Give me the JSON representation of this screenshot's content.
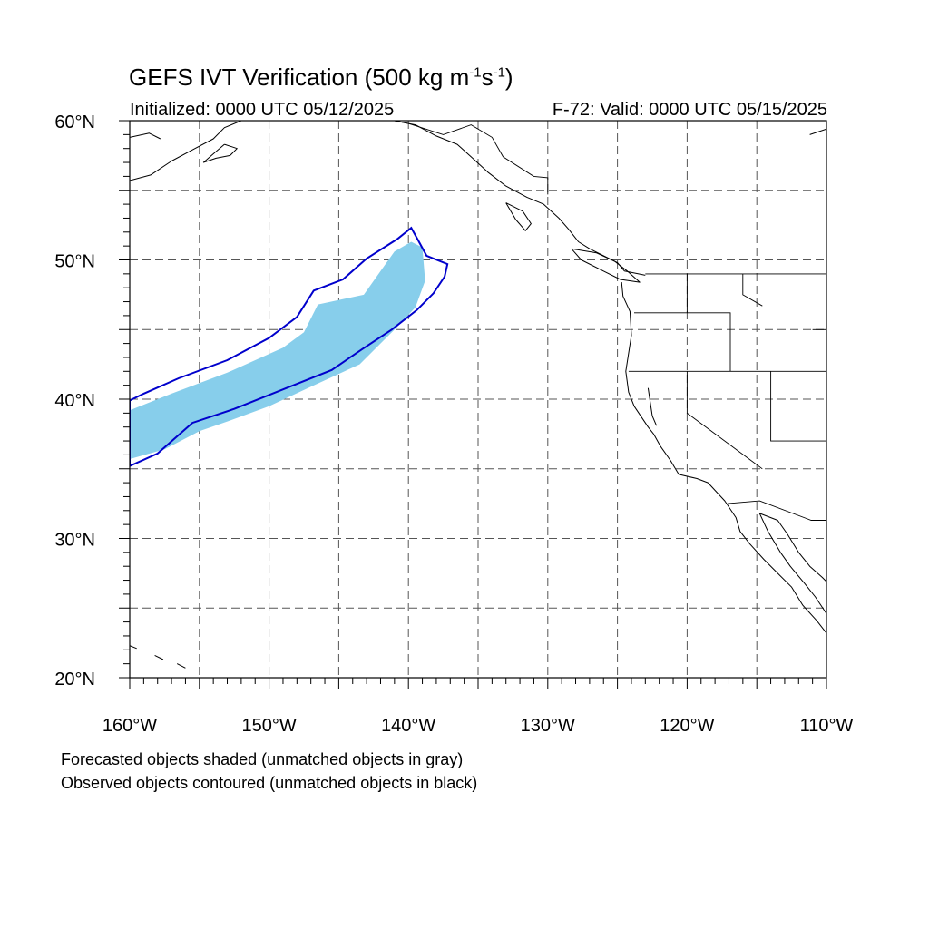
{
  "title": {
    "main": "GEFS IVT Verification (500 kg m",
    "exp1": "-1",
    "mid": "s",
    "exp2": "-1",
    "close": ")"
  },
  "subtitle": {
    "left": "Initialized: 0000 UTC 05/12/2025",
    "right": "F-72: Valid: 0000 UTC 05/15/2025"
  },
  "map": {
    "lon_range": [
      -160,
      -110
    ],
    "lat_range": [
      20,
      60
    ],
    "grid": "dashed every 5 degrees",
    "lat_labels": [
      {
        "lat": 60,
        "text": "60°N"
      },
      {
        "lat": 50,
        "text": "50°N"
      },
      {
        "lat": 40,
        "text": "40°N"
      },
      {
        "lat": 30,
        "text": "30°N"
      },
      {
        "lat": 20,
        "text": "20°N"
      }
    ],
    "lon_labels": [
      {
        "lon": -160,
        "text": "160°W"
      },
      {
        "lon": -150,
        "text": "150°W"
      },
      {
        "lon": -140,
        "text": "140°W"
      },
      {
        "lon": -130,
        "text": "130°W"
      },
      {
        "lon": -120,
        "text": "120°W"
      },
      {
        "lon": -110,
        "text": "110°W"
      }
    ],
    "forecast_object": {
      "color": "#87CEEB",
      "outline": [
        [
          -160.0,
          39.2
        ],
        [
          -157.0,
          40.4
        ],
        [
          -153.0,
          41.9
        ],
        [
          -149.0,
          43.7
        ],
        [
          -147.5,
          44.8
        ],
        [
          -146.5,
          46.8
        ],
        [
          -143.2,
          47.5
        ],
        [
          -142.0,
          49.2
        ],
        [
          -141.0,
          50.6
        ],
        [
          -139.8,
          51.3
        ],
        [
          -139.0,
          50.9
        ],
        [
          -138.8,
          48.5
        ],
        [
          -139.5,
          46.6
        ],
        [
          -140.8,
          45.2
        ],
        [
          -143.5,
          42.5
        ],
        [
          -147.0,
          40.9
        ],
        [
          -150.0,
          39.5
        ],
        [
          -153.0,
          38.4
        ],
        [
          -155.0,
          37.7
        ],
        [
          -157.5,
          36.4
        ],
        [
          -160.0,
          35.7
        ]
      ]
    },
    "observed_object": {
      "color": "#0000cc",
      "outline": [
        [
          -160.0,
          39.9
        ],
        [
          -159.0,
          40.4
        ],
        [
          -156.5,
          41.5
        ],
        [
          -153.0,
          42.8
        ],
        [
          -150.0,
          44.4
        ],
        [
          -148.0,
          45.9
        ],
        [
          -146.8,
          47.8
        ],
        [
          -144.7,
          48.6
        ],
        [
          -143.0,
          50.1
        ],
        [
          -140.8,
          51.5
        ],
        [
          -139.8,
          52.3
        ],
        [
          -139.3,
          51.4
        ],
        [
          -138.7,
          50.3
        ],
        [
          -137.2,
          49.7
        ],
        [
          -137.4,
          48.8
        ],
        [
          -138.2,
          47.6
        ],
        [
          -139.4,
          46.4
        ],
        [
          -141.2,
          45.0
        ],
        [
          -143.3,
          43.6
        ],
        [
          -145.5,
          42.1
        ],
        [
          -148.5,
          40.9
        ],
        [
          -152.5,
          39.3
        ],
        [
          -155.5,
          38.3
        ],
        [
          -158.0,
          36.1
        ],
        [
          -160.0,
          35.2
        ]
      ]
    },
    "coastlines": [
      [
        [
          -160.0,
          55.7
        ],
        [
          -158.5,
          56.1
        ],
        [
          -157.0,
          57.1
        ],
        [
          -155.5,
          57.9
        ],
        [
          -154.0,
          58.7
        ],
        [
          -153.2,
          59.5
        ],
        [
          -152.0,
          60.0
        ]
      ],
      [
        [
          -160.0,
          58.8
        ],
        [
          -158.6,
          59.1
        ],
        [
          -157.8,
          58.7
        ]
      ],
      [
        [
          -153.2,
          58.3
        ],
        [
          -152.3,
          58.0
        ],
        [
          -152.8,
          57.5
        ],
        [
          -153.8,
          57.3
        ],
        [
          -154.7,
          57.0
        ],
        [
          -153.9,
          57.7
        ],
        [
          -153.2,
          58.3
        ]
      ],
      [
        [
          -141.0,
          60.0
        ],
        [
          -139.5,
          59.7
        ],
        [
          -138.0,
          58.9
        ],
        [
          -136.5,
          58.3
        ],
        [
          -135.5,
          57.4
        ],
        [
          -134.3,
          56.3
        ],
        [
          -133.0,
          55.3
        ],
        [
          -131.5,
          54.5
        ],
        [
          -130.3,
          54.0
        ],
        [
          -129.2,
          53.0
        ],
        [
          -128.5,
          52.2
        ],
        [
          -127.8,
          51.3
        ],
        [
          -127.0,
          50.8
        ],
        [
          -125.0,
          49.8
        ],
        [
          -124.5,
          49.2
        ],
        [
          -123.0,
          48.9
        ]
      ],
      [
        [
          -133.0,
          54.1
        ],
        [
          -131.8,
          53.5
        ],
        [
          -131.2,
          52.6
        ],
        [
          -131.6,
          52.1
        ],
        [
          -132.3,
          52.9
        ],
        [
          -133.0,
          54.1
        ]
      ],
      [
        [
          -128.3,
          50.8
        ],
        [
          -126.5,
          50.5
        ],
        [
          -125.2,
          49.9
        ],
        [
          -124.3,
          49.2
        ],
        [
          -123.4,
          48.4
        ],
        [
          -124.8,
          48.6
        ],
        [
          -126.0,
          49.2
        ],
        [
          -127.6,
          50.0
        ],
        [
          -128.3,
          50.8
        ]
      ],
      [
        [
          -124.7,
          48.4
        ],
        [
          -124.6,
          47.4
        ],
        [
          -124.1,
          46.3
        ],
        [
          -124.0,
          44.6
        ],
        [
          -124.2,
          43.3
        ],
        [
          -124.4,
          42.0
        ],
        [
          -124.2,
          40.5
        ],
        [
          -123.8,
          39.5
        ],
        [
          -122.8,
          38.0
        ],
        [
          -122.4,
          37.5
        ],
        [
          -121.9,
          36.6
        ],
        [
          -121.2,
          35.6
        ],
        [
          -120.6,
          34.6
        ],
        [
          -119.3,
          34.3
        ],
        [
          -118.5,
          34.0
        ],
        [
          -117.3,
          32.7
        ],
        [
          -116.5,
          31.5
        ],
        [
          -116.2,
          30.5
        ],
        [
          -115.5,
          29.6
        ],
        [
          -114.5,
          28.5
        ],
        [
          -113.5,
          27.5
        ],
        [
          -112.5,
          26.5
        ],
        [
          -111.7,
          25.2
        ],
        [
          -110.7,
          24.1
        ],
        [
          -110.0,
          23.2
        ]
      ],
      [
        [
          -114.8,
          31.8
        ],
        [
          -114.2,
          30.5
        ],
        [
          -113.3,
          29.0
        ],
        [
          -112.6,
          28.0
        ],
        [
          -111.6,
          26.8
        ],
        [
          -110.8,
          25.8
        ],
        [
          -110.0,
          24.6
        ]
      ],
      [
        [
          -114.8,
          31.8
        ],
        [
          -113.5,
          31.3
        ],
        [
          -112.8,
          30.3
        ],
        [
          -112.0,
          29.0
        ],
        [
          -111.2,
          28.0
        ],
        [
          -110.3,
          27.2
        ],
        [
          -110.0,
          26.9
        ]
      ],
      [
        [
          -110.0,
          59.4
        ],
        [
          -111.2,
          59.0
        ]
      ],
      [
        [
          -122.8,
          40.8
        ],
        [
          -122.5,
          38.8
        ],
        [
          -122.2,
          38.1
        ]
      ],
      [
        [
          -160.0,
          22.3
        ],
        [
          -159.5,
          22.1
        ]
      ],
      [
        [
          -158.2,
          21.6
        ],
        [
          -157.6,
          21.3
        ]
      ],
      [
        [
          -156.6,
          21.0
        ],
        [
          -156.0,
          20.7
        ]
      ]
    ],
    "borders": [
      [
        [
          -123.0,
          49.0
        ],
        [
          -110.0,
          49.0
        ]
      ],
      [
        [
          -123.8,
          46.2
        ],
        [
          -116.9,
          46.2
        ],
        [
          -116.9,
          42.0
        ]
      ],
      [
        [
          -124.2,
          42.0
        ],
        [
          -110.0,
          42.0
        ]
      ],
      [
        [
          -120.0,
          42.0
        ],
        [
          -120.0,
          39.0
        ],
        [
          -114.6,
          35.0
        ]
      ],
      [
        [
          -114.0,
          42.0
        ],
        [
          -114.0,
          37.0
        ],
        [
          -110.0,
          37.0
        ]
      ],
      [
        [
          -117.1,
          32.5
        ],
        [
          -114.8,
          32.7
        ],
        [
          -111.1,
          31.3
        ],
        [
          -110.0,
          31.3
        ]
      ],
      [
        [
          -116.0,
          49.0
        ],
        [
          -116.0,
          47.5
        ],
        [
          -114.6,
          46.7
        ]
      ],
      [
        [
          -111.0,
          45.0
        ],
        [
          -110.0,
          45.0
        ]
      ],
      [
        [
          -120.0,
          49.0
        ],
        [
          -120.0,
          46.2
        ]
      ],
      [
        [
          -141.0,
          60.0
        ],
        [
          -140.0,
          59.8
        ],
        [
          -137.5,
          59.0
        ],
        [
          -135.5,
          59.7
        ],
        [
          -134.0,
          58.8
        ],
        [
          -133.2,
          57.4
        ],
        [
          -131.0,
          56.0
        ],
        [
          -130.0,
          55.9
        ],
        [
          -130.0,
          54.7
        ]
      ]
    ]
  },
  "footer": {
    "line1": "Forecasted objects shaded (unmatched objects in gray)",
    "line2": "Observed objects contoured (unmatched objects in black)"
  }
}
